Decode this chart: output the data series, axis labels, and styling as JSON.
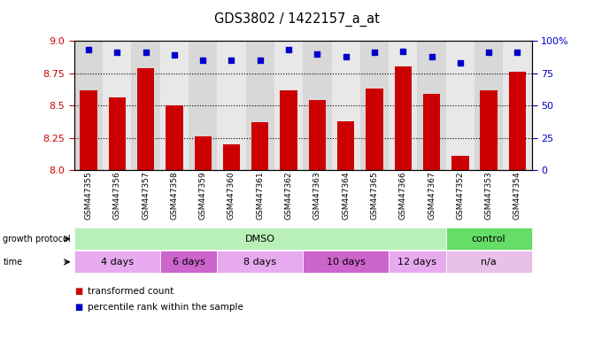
{
  "title": "GDS3802 / 1422157_a_at",
  "samples": [
    "GSM447355",
    "GSM447356",
    "GSM447357",
    "GSM447358",
    "GSM447359",
    "GSM447360",
    "GSM447361",
    "GSM447362",
    "GSM447363",
    "GSM447364",
    "GSM447365",
    "GSM447366",
    "GSM447367",
    "GSM447352",
    "GSM447353",
    "GSM447354"
  ],
  "transformed_count": [
    8.62,
    8.56,
    8.79,
    8.5,
    8.26,
    8.2,
    8.37,
    8.62,
    8.54,
    8.38,
    8.63,
    8.8,
    8.59,
    8.11,
    8.62,
    8.76
  ],
  "percentile_rank": [
    93,
    91,
    91,
    89,
    85,
    85,
    85,
    93,
    90,
    88,
    91,
    92,
    88,
    83,
    91,
    91
  ],
  "ylim_left": [
    8.0,
    9.0
  ],
  "ylim_right": [
    0,
    100
  ],
  "yticks_left": [
    8.0,
    8.25,
    8.5,
    8.75,
    9.0
  ],
  "yticks_right": [
    0,
    25,
    50,
    75,
    100
  ],
  "bar_color": "#cc0000",
  "dot_color": "#0000cc",
  "tick_label_color_left": "#cc0000",
  "tick_label_color_right": "#0000cc",
  "growth_protocol_groups": [
    {
      "label": "DMSO",
      "start": 0,
      "end": 13,
      "color": "#b8f0b8"
    },
    {
      "label": "control",
      "start": 13,
      "end": 16,
      "color": "#66dd66"
    }
  ],
  "time_groups": [
    {
      "label": "4 days",
      "start": 0,
      "end": 3,
      "color": "#e8aaee"
    },
    {
      "label": "6 days",
      "start": 3,
      "end": 5,
      "color": "#cc66cc"
    },
    {
      "label": "8 days",
      "start": 5,
      "end": 8,
      "color": "#e8aaee"
    },
    {
      "label": "10 days",
      "start": 8,
      "end": 11,
      "color": "#cc66cc"
    },
    {
      "label": "12 days",
      "start": 11,
      "end": 13,
      "color": "#e8aaee"
    },
    {
      "label": "n/a",
      "start": 13,
      "end": 16,
      "color": "#e8c0e8"
    }
  ],
  "legend_items": [
    {
      "label": "transformed count",
      "color": "#cc0000"
    },
    {
      "label": "percentile rank within the sample",
      "color": "#0000cc"
    }
  ]
}
